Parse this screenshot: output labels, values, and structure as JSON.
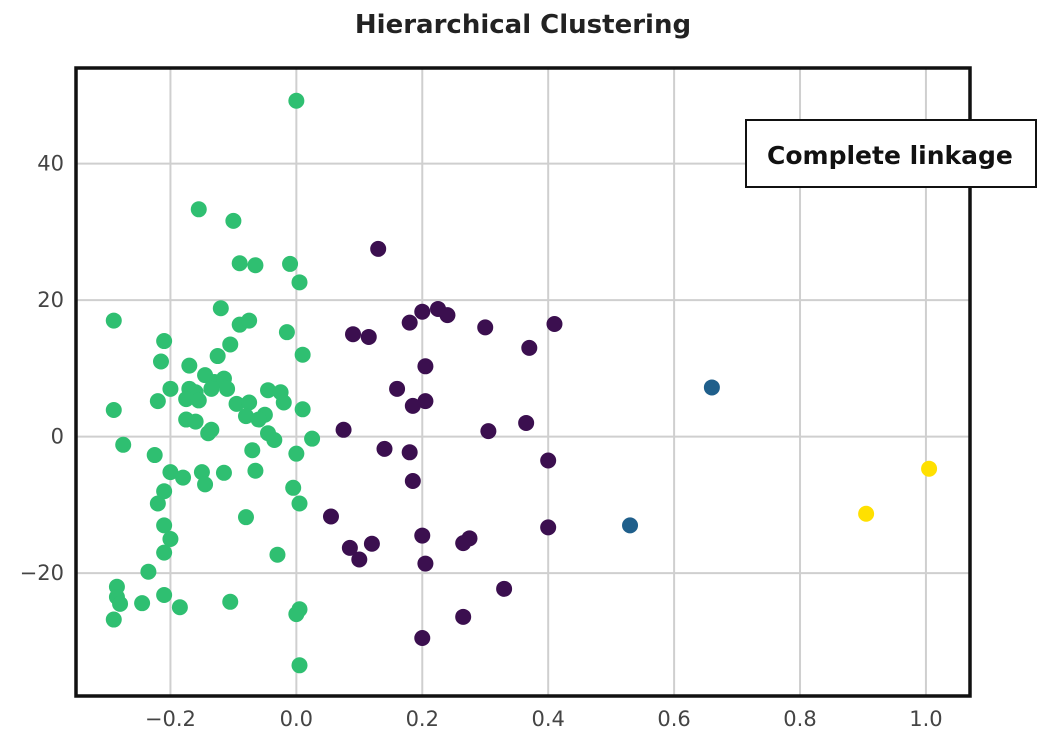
{
  "chart_data": {
    "type": "scatter",
    "title": "Hierarchical Clustering",
    "xlabel": "",
    "ylabel": "",
    "xlim": [
      -0.35,
      1.07
    ],
    "ylim": [
      -38,
      54
    ],
    "xticks": [
      -0.2,
      0.0,
      0.2,
      0.4,
      0.6,
      0.8,
      1.0
    ],
    "xtick_labels": [
      "−0.2",
      "0.0",
      "0.2",
      "0.4",
      "0.6",
      "0.8",
      "1.0"
    ],
    "yticks": [
      40,
      20,
      0,
      -20
    ],
    "ytick_labels": [
      "40",
      "20",
      "0",
      "−20"
    ],
    "grid": true,
    "annotation": "Complete linkage",
    "series": [
      {
        "color": "#2fbf71",
        "points": [
          [
            0.0,
            49.2
          ],
          [
            -0.155,
            33.3
          ],
          [
            -0.1,
            31.6
          ],
          [
            -0.09,
            25.4
          ],
          [
            -0.065,
            25.1
          ],
          [
            -0.01,
            25.3
          ],
          [
            0.005,
            22.6
          ],
          [
            -0.12,
            18.8
          ],
          [
            -0.09,
            16.4
          ],
          [
            -0.075,
            17.0
          ],
          [
            -0.015,
            15.3
          ],
          [
            0.01,
            12.0
          ],
          [
            -0.29,
            17.0
          ],
          [
            -0.21,
            14.0
          ],
          [
            -0.105,
            13.5
          ],
          [
            -0.215,
            11.0
          ],
          [
            -0.17,
            10.4
          ],
          [
            -0.125,
            11.8
          ],
          [
            -0.145,
            9.0
          ],
          [
            -0.13,
            8.0
          ],
          [
            -0.115,
            8.5
          ],
          [
            -0.2,
            7.0
          ],
          [
            -0.17,
            7.0
          ],
          [
            -0.16,
            6.5
          ],
          [
            -0.135,
            7.0
          ],
          [
            -0.11,
            7.0
          ],
          [
            -0.045,
            6.8
          ],
          [
            -0.025,
            6.5
          ],
          [
            -0.22,
            5.2
          ],
          [
            -0.175,
            5.5
          ],
          [
            -0.155,
            5.3
          ],
          [
            -0.095,
            4.8
          ],
          [
            -0.075,
            5.0
          ],
          [
            -0.05,
            3.2
          ],
          [
            -0.02,
            5.0
          ],
          [
            0.01,
            4.0
          ],
          [
            -0.29,
            3.9
          ],
          [
            -0.175,
            2.5
          ],
          [
            -0.16,
            2.2
          ],
          [
            -0.08,
            3.0
          ],
          [
            -0.06,
            2.5
          ],
          [
            -0.14,
            0.5
          ],
          [
            -0.135,
            1.0
          ],
          [
            -0.045,
            0.5
          ],
          [
            -0.035,
            -0.5
          ],
          [
            0.025,
            -0.3
          ],
          [
            -0.275,
            -1.2
          ],
          [
            -0.07,
            -2.0
          ],
          [
            0.0,
            -2.5
          ],
          [
            -0.225,
            -2.7
          ],
          [
            -0.2,
            -5.2
          ],
          [
            -0.15,
            -5.2
          ],
          [
            -0.115,
            -5.3
          ],
          [
            -0.065,
            -5.0
          ],
          [
            -0.18,
            -6.0
          ],
          [
            -0.145,
            -7.0
          ],
          [
            -0.21,
            -8.0
          ],
          [
            0.005,
            -9.8
          ],
          [
            -0.005,
            -7.5
          ],
          [
            -0.22,
            -9.8
          ],
          [
            -0.08,
            -11.8
          ],
          [
            -0.21,
            -13.0
          ],
          [
            -0.2,
            -15.0
          ],
          [
            -0.21,
            -17.0
          ],
          [
            -0.03,
            -17.3
          ],
          [
            -0.235,
            -19.8
          ],
          [
            -0.285,
            -22.0
          ],
          [
            -0.285,
            -23.5
          ],
          [
            -0.28,
            -24.5
          ],
          [
            -0.21,
            -23.2
          ],
          [
            -0.245,
            -24.4
          ],
          [
            -0.185,
            -25.0
          ],
          [
            -0.105,
            -24.2
          ],
          [
            0.005,
            -25.3
          ],
          [
            0.0,
            -26.0
          ],
          [
            -0.29,
            -26.8
          ],
          [
            0.005,
            -33.5
          ]
        ]
      },
      {
        "color": "#3b0f4f",
        "points": [
          [
            0.13,
            27.5
          ],
          [
            0.2,
            18.3
          ],
          [
            0.225,
            18.7
          ],
          [
            0.24,
            17.8
          ],
          [
            0.18,
            16.7
          ],
          [
            0.41,
            16.5
          ],
          [
            0.3,
            16.0
          ],
          [
            0.09,
            15.0
          ],
          [
            0.115,
            14.6
          ],
          [
            0.37,
            13.0
          ],
          [
            0.205,
            10.3
          ],
          [
            0.16,
            7.0
          ],
          [
            0.205,
            5.2
          ],
          [
            0.185,
            4.5
          ],
          [
            0.365,
            2.0
          ],
          [
            0.075,
            1.0
          ],
          [
            0.305,
            0.8
          ],
          [
            0.14,
            -1.8
          ],
          [
            0.18,
            -2.3
          ],
          [
            0.4,
            -3.5
          ],
          [
            0.185,
            -6.5
          ],
          [
            0.055,
            -11.7
          ],
          [
            0.4,
            -13.3
          ],
          [
            0.12,
            -15.7
          ],
          [
            0.085,
            -16.3
          ],
          [
            0.275,
            -14.9
          ],
          [
            0.265,
            -15.6
          ],
          [
            0.2,
            -14.5
          ],
          [
            0.1,
            -18.0
          ],
          [
            0.205,
            -18.6
          ],
          [
            0.33,
            -22.3
          ],
          [
            0.265,
            -26.4
          ],
          [
            0.2,
            -29.5
          ]
        ]
      },
      {
        "color": "#1f5f8b",
        "points": [
          [
            0.66,
            7.2
          ],
          [
            0.53,
            -13.0
          ]
        ]
      },
      {
        "color": "#ffe000",
        "points": [
          [
            1.005,
            -4.7
          ],
          [
            0.905,
            -11.3
          ]
        ]
      }
    ]
  }
}
